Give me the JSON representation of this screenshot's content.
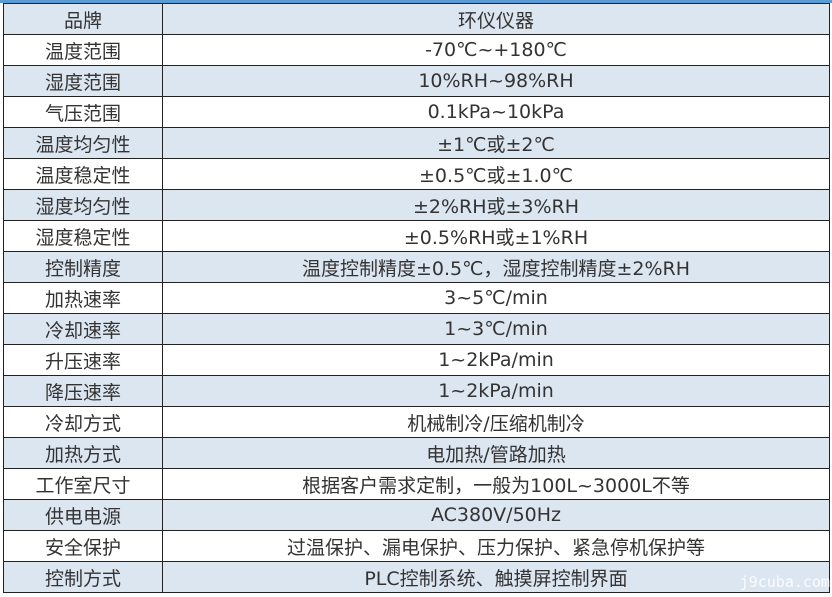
{
  "rows": [
    {
      "key": "品牌",
      "value": "环仪仪器"
    },
    {
      "key": "温度范围",
      "value": "-70℃~+180℃"
    },
    {
      "key": "湿度范围",
      "value": "10%RH~98%RH"
    },
    {
      "key": "气压范围",
      "value": "0.1kPa~10kPa"
    },
    {
      "key": "温度均匀性",
      "value": "±1℃或±2℃"
    },
    {
      "key": "温度稳定性",
      "value": "±0.5℃或±1.0℃"
    },
    {
      "key": "湿度均匀性",
      "value": "±2%RH或±3%RH"
    },
    {
      "key": "湿度稳定性",
      "value": "±0.5%RH或±1%RH"
    },
    {
      "key": "控制精度",
      "value": "温度控制精度±0.5℃，湿度控制精度±2%RH"
    },
    {
      "key": "加热速率",
      "value": "3~5℃/min"
    },
    {
      "key": "冷却速率",
      "value": "1~3℃/min"
    },
    {
      "key": "升压速率",
      "value": "1~2kPa/min"
    },
    {
      "key": "降压速率",
      "value": "1~2kPa/min"
    },
    {
      "key": "冷却方式",
      "value": "机械制冷/压缩机制冷"
    },
    {
      "key": "加热方式",
      "value": "电加热/管路加热"
    },
    {
      "key": "工作室尺寸",
      "value": "根据客户需求定制，一般为100L~3000L不等"
    },
    {
      "key": "供电电源",
      "value": "AC380V/50Hz"
    },
    {
      "key": "安全保护",
      "value": "过温保护、漏电保护、压力保护、紧急停机保护等"
    },
    {
      "key": "控制方式",
      "value": "PLC控制系统、触摸屏控制界面"
    }
  ],
  "watermark": "j9cuba.com",
  "colors": {
    "stripe": "#dce6f1",
    "border": "#222222",
    "accent": "#5b9bd5"
  }
}
